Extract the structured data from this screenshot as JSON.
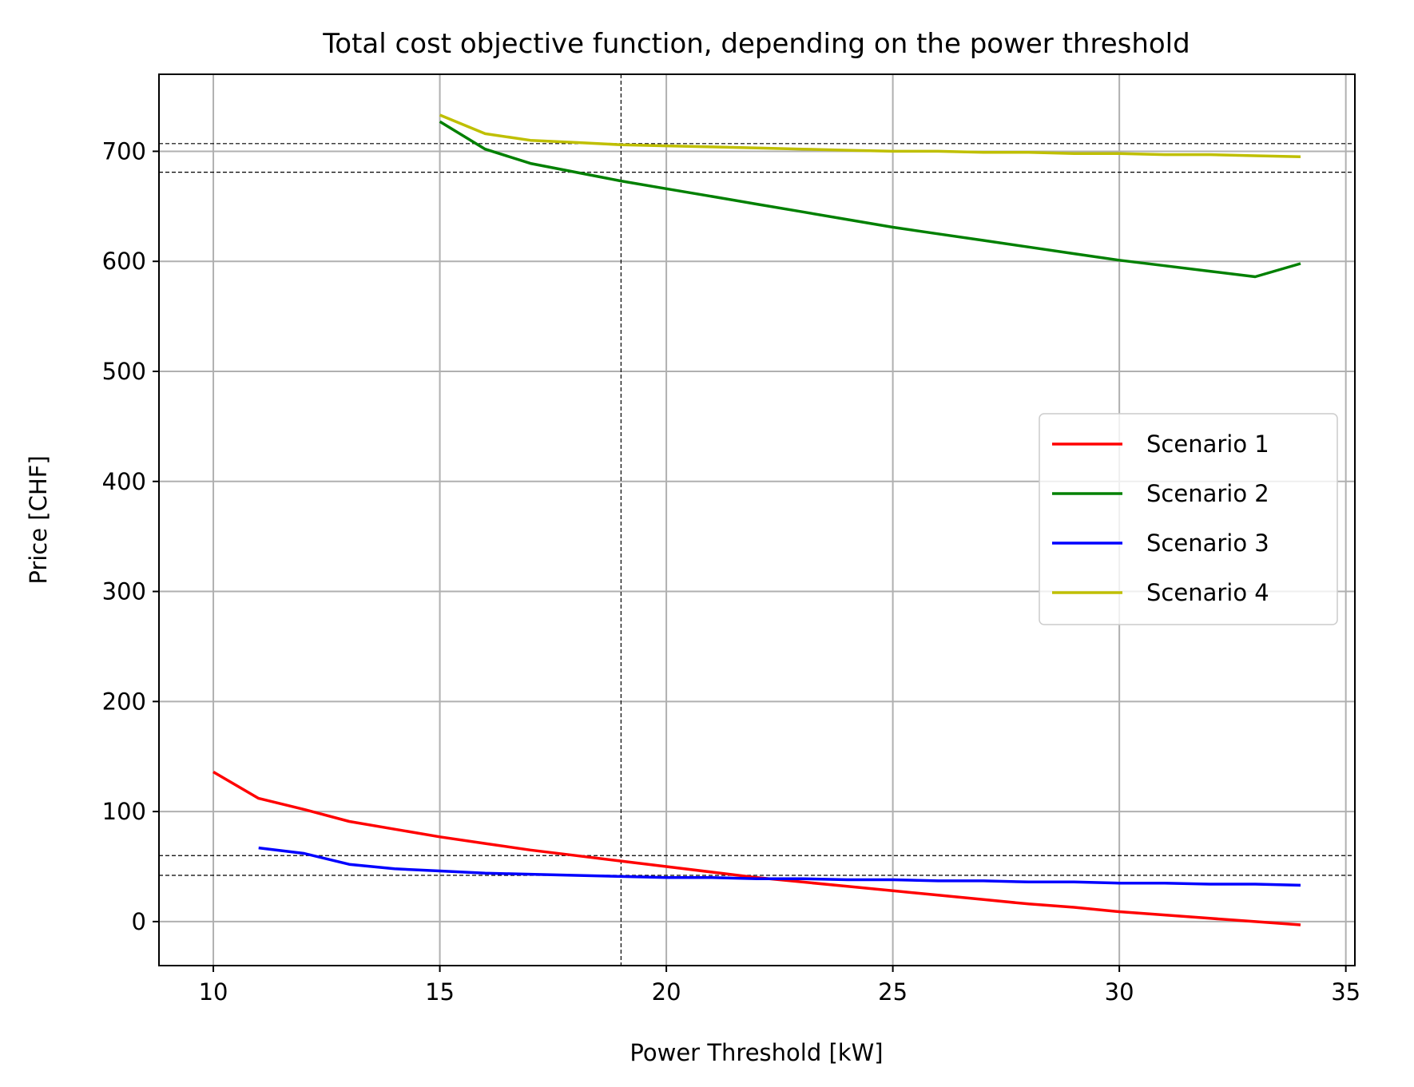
{
  "chart_data": {
    "type": "line",
    "title": "Total cost objective function, depending on the power threshold",
    "xlabel": "Power Threshold [kW]",
    "ylabel": "Price [CHF]",
    "xlim": [
      8.8,
      35.2
    ],
    "ylim": [
      -40,
      770
    ],
    "xticks": [
      10,
      15,
      20,
      25,
      30,
      35
    ],
    "yticks": [
      0,
      100,
      200,
      300,
      400,
      500,
      600,
      700
    ],
    "grid": true,
    "legend_position": "center-right",
    "series": [
      {
        "name": "Scenario 1",
        "color": "#ff0000",
        "x": [
          10,
          11,
          12,
          13,
          14,
          15,
          16,
          17,
          18,
          19,
          20,
          21,
          22,
          23,
          24,
          25,
          26,
          27,
          28,
          29,
          30,
          31,
          32,
          33,
          34
        ],
        "y": [
          136,
          112,
          102,
          91,
          84,
          77,
          71,
          65,
          60,
          55,
          50,
          45,
          40,
          36,
          32,
          28,
          24,
          20,
          16,
          13,
          9,
          6,
          3,
          0,
          -3
        ]
      },
      {
        "name": "Scenario 2",
        "color": "#008000",
        "x": [
          15,
          16,
          17,
          18,
          19,
          20,
          21,
          22,
          23,
          24,
          25,
          26,
          27,
          28,
          29,
          30,
          31,
          32,
          33,
          34
        ],
        "y": [
          727,
          702,
          689,
          681,
          673,
          666,
          659,
          652,
          645,
          638,
          631,
          625,
          619,
          613,
          607,
          601,
          596,
          591,
          586,
          598
        ]
      },
      {
        "name": "Scenario 3",
        "color": "#0000ff",
        "x": [
          11,
          12,
          13,
          14,
          15,
          16,
          17,
          18,
          19,
          20,
          21,
          22,
          23,
          24,
          25,
          26,
          27,
          28,
          29,
          30,
          31,
          32,
          33,
          34
        ],
        "y": [
          67,
          62,
          52,
          48,
          46,
          44,
          43,
          42,
          41,
          40,
          40,
          39,
          39,
          38,
          38,
          37,
          37,
          36,
          36,
          35,
          35,
          34,
          34,
          33
        ]
      },
      {
        "name": "Scenario 4",
        "color": "#bfbf00",
        "x": [
          15,
          16,
          17,
          18,
          19,
          20,
          21,
          22,
          23,
          24,
          25,
          26,
          27,
          28,
          29,
          30,
          31,
          32,
          33,
          34
        ],
        "y": [
          733,
          716,
          710,
          708,
          706,
          705,
          704,
          703,
          702,
          701,
          700,
          700,
          699,
          699,
          698,
          698,
          697,
          697,
          696,
          695
        ]
      }
    ],
    "reference_lines": {
      "vertical_x": [
        19
      ],
      "horizontal_y": [
        707,
        681,
        60,
        42
      ]
    }
  }
}
